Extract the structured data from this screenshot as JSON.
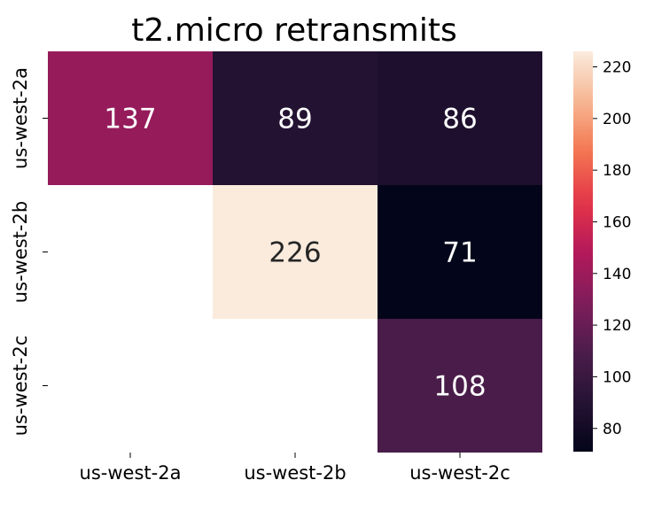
{
  "chart_data": {
    "type": "heatmap",
    "title": "t2.micro retransmits",
    "xlabel": "",
    "ylabel": "",
    "x_categories": [
      "us-west-2a",
      "us-west-2b",
      "us-west-2c"
    ],
    "y_categories": [
      "us-west-2a",
      "us-west-2b",
      "us-west-2c"
    ],
    "values": [
      [
        137,
        89,
        86
      ],
      [
        null,
        226,
        71
      ],
      [
        null,
        null,
        108
      ]
    ],
    "colormap": "rocket",
    "colorbar": {
      "range": [
        71,
        226
      ],
      "ticks": [
        80,
        100,
        120,
        140,
        160,
        180,
        200,
        220
      ]
    },
    "grid": false
  }
}
